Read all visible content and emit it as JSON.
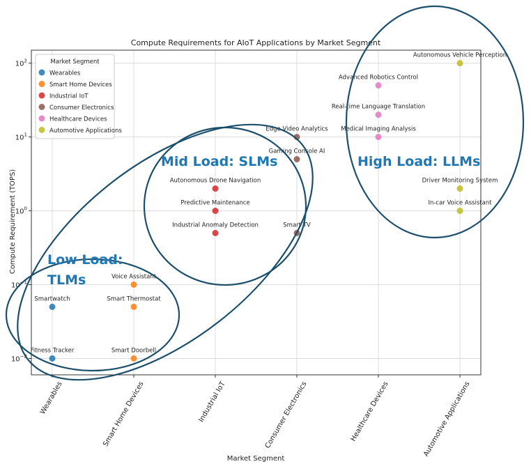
{
  "chart_data": {
    "type": "scatter",
    "title": "Compute Requirements for AIoT Applications by Market Segment",
    "xlabel": "Market Segment",
    "ylabel": "Compute Requirement (TOPS)",
    "yscale": "log",
    "ylim": [
      0.006,
      150
    ],
    "yticks": [
      {
        "value": 0.01,
        "base": "10",
        "exp": "−2"
      },
      {
        "value": 0.1,
        "base": "10",
        "exp": "−1"
      },
      {
        "value": 1,
        "base": "10",
        "exp": "0"
      },
      {
        "value": 10,
        "base": "10",
        "exp": "1"
      },
      {
        "value": 100,
        "base": "10",
        "exp": "2"
      }
    ],
    "categories": [
      "Wearables",
      "Smart Home Devices",
      "Industrial IoT",
      "Consumer Electronics",
      "Healthcare Devices",
      "Automotive Applications"
    ],
    "grid": true,
    "legend": {
      "title": "Market Segment",
      "placement": "top-left"
    },
    "series": [
      {
        "name": "Wearables",
        "color": "#1f77b4",
        "points": [
          {
            "x": "Wearables",
            "y": 0.05,
            "label": "Smartwatch"
          },
          {
            "x": "Wearables",
            "y": 0.01,
            "label": "Fitness Tracker"
          }
        ]
      },
      {
        "name": "Smart Home Devices",
        "color": "#ff7f0e",
        "points": [
          {
            "x": "Smart Home Devices",
            "y": 0.1,
            "label": "Voice Assistant"
          },
          {
            "x": "Smart Home Devices",
            "y": 0.05,
            "label": "Smart Thermostat"
          },
          {
            "x": "Smart Home Devices",
            "y": 0.01,
            "label": "Smart Doorbell"
          }
        ]
      },
      {
        "name": "Industrial IoT",
        "color": "#d62728",
        "points": [
          {
            "x": "Industrial IoT",
            "y": 2,
            "label": "Autonomous Drone Navigation"
          },
          {
            "x": "Industrial IoT",
            "y": 1,
            "label": "Predictive Maintenance"
          },
          {
            "x": "Industrial IoT",
            "y": 0.5,
            "label": "Industrial Anomaly Detection"
          }
        ]
      },
      {
        "name": "Consumer Electronics",
        "color": "#8c564b",
        "points": [
          {
            "x": "Consumer Electronics",
            "y": 10,
            "label": "Edge Video Analytics"
          },
          {
            "x": "Consumer Electronics",
            "y": 5,
            "label": "Gaming Console AI"
          },
          {
            "x": "Consumer Electronics",
            "y": 0.5,
            "label": "Smart TV"
          }
        ]
      },
      {
        "name": "Healthcare Devices",
        "color": "#e377c2",
        "points": [
          {
            "x": "Healthcare Devices",
            "y": 50,
            "label": "Advanced Robotics Control"
          },
          {
            "x": "Healthcare Devices",
            "y": 20,
            "label": "Real-time Language Translation"
          },
          {
            "x": "Healthcare Devices",
            "y": 10,
            "label": "Medical Imaging Analysis"
          }
        ]
      },
      {
        "name": "Automotive Applications",
        "color": "#bcbd22",
        "points": [
          {
            "x": "Automotive Applications",
            "y": 100,
            "label": "Autonomous Vehicle Perception"
          },
          {
            "x": "Automotive Applications",
            "y": 2,
            "label": "Driver Monitoring System"
          },
          {
            "x": "Automotive Applications",
            "y": 1,
            "label": "In-car Voice Assistant"
          }
        ]
      }
    ],
    "annotations": [
      {
        "text": "Low Load:",
        "line2": "TLMs"
      },
      {
        "text": "Mid Load: SLMs"
      },
      {
        "text": "High Load: LLMs"
      }
    ],
    "annotation_color": "#1f77b4",
    "ellipse_color": "#1b4f6b"
  }
}
